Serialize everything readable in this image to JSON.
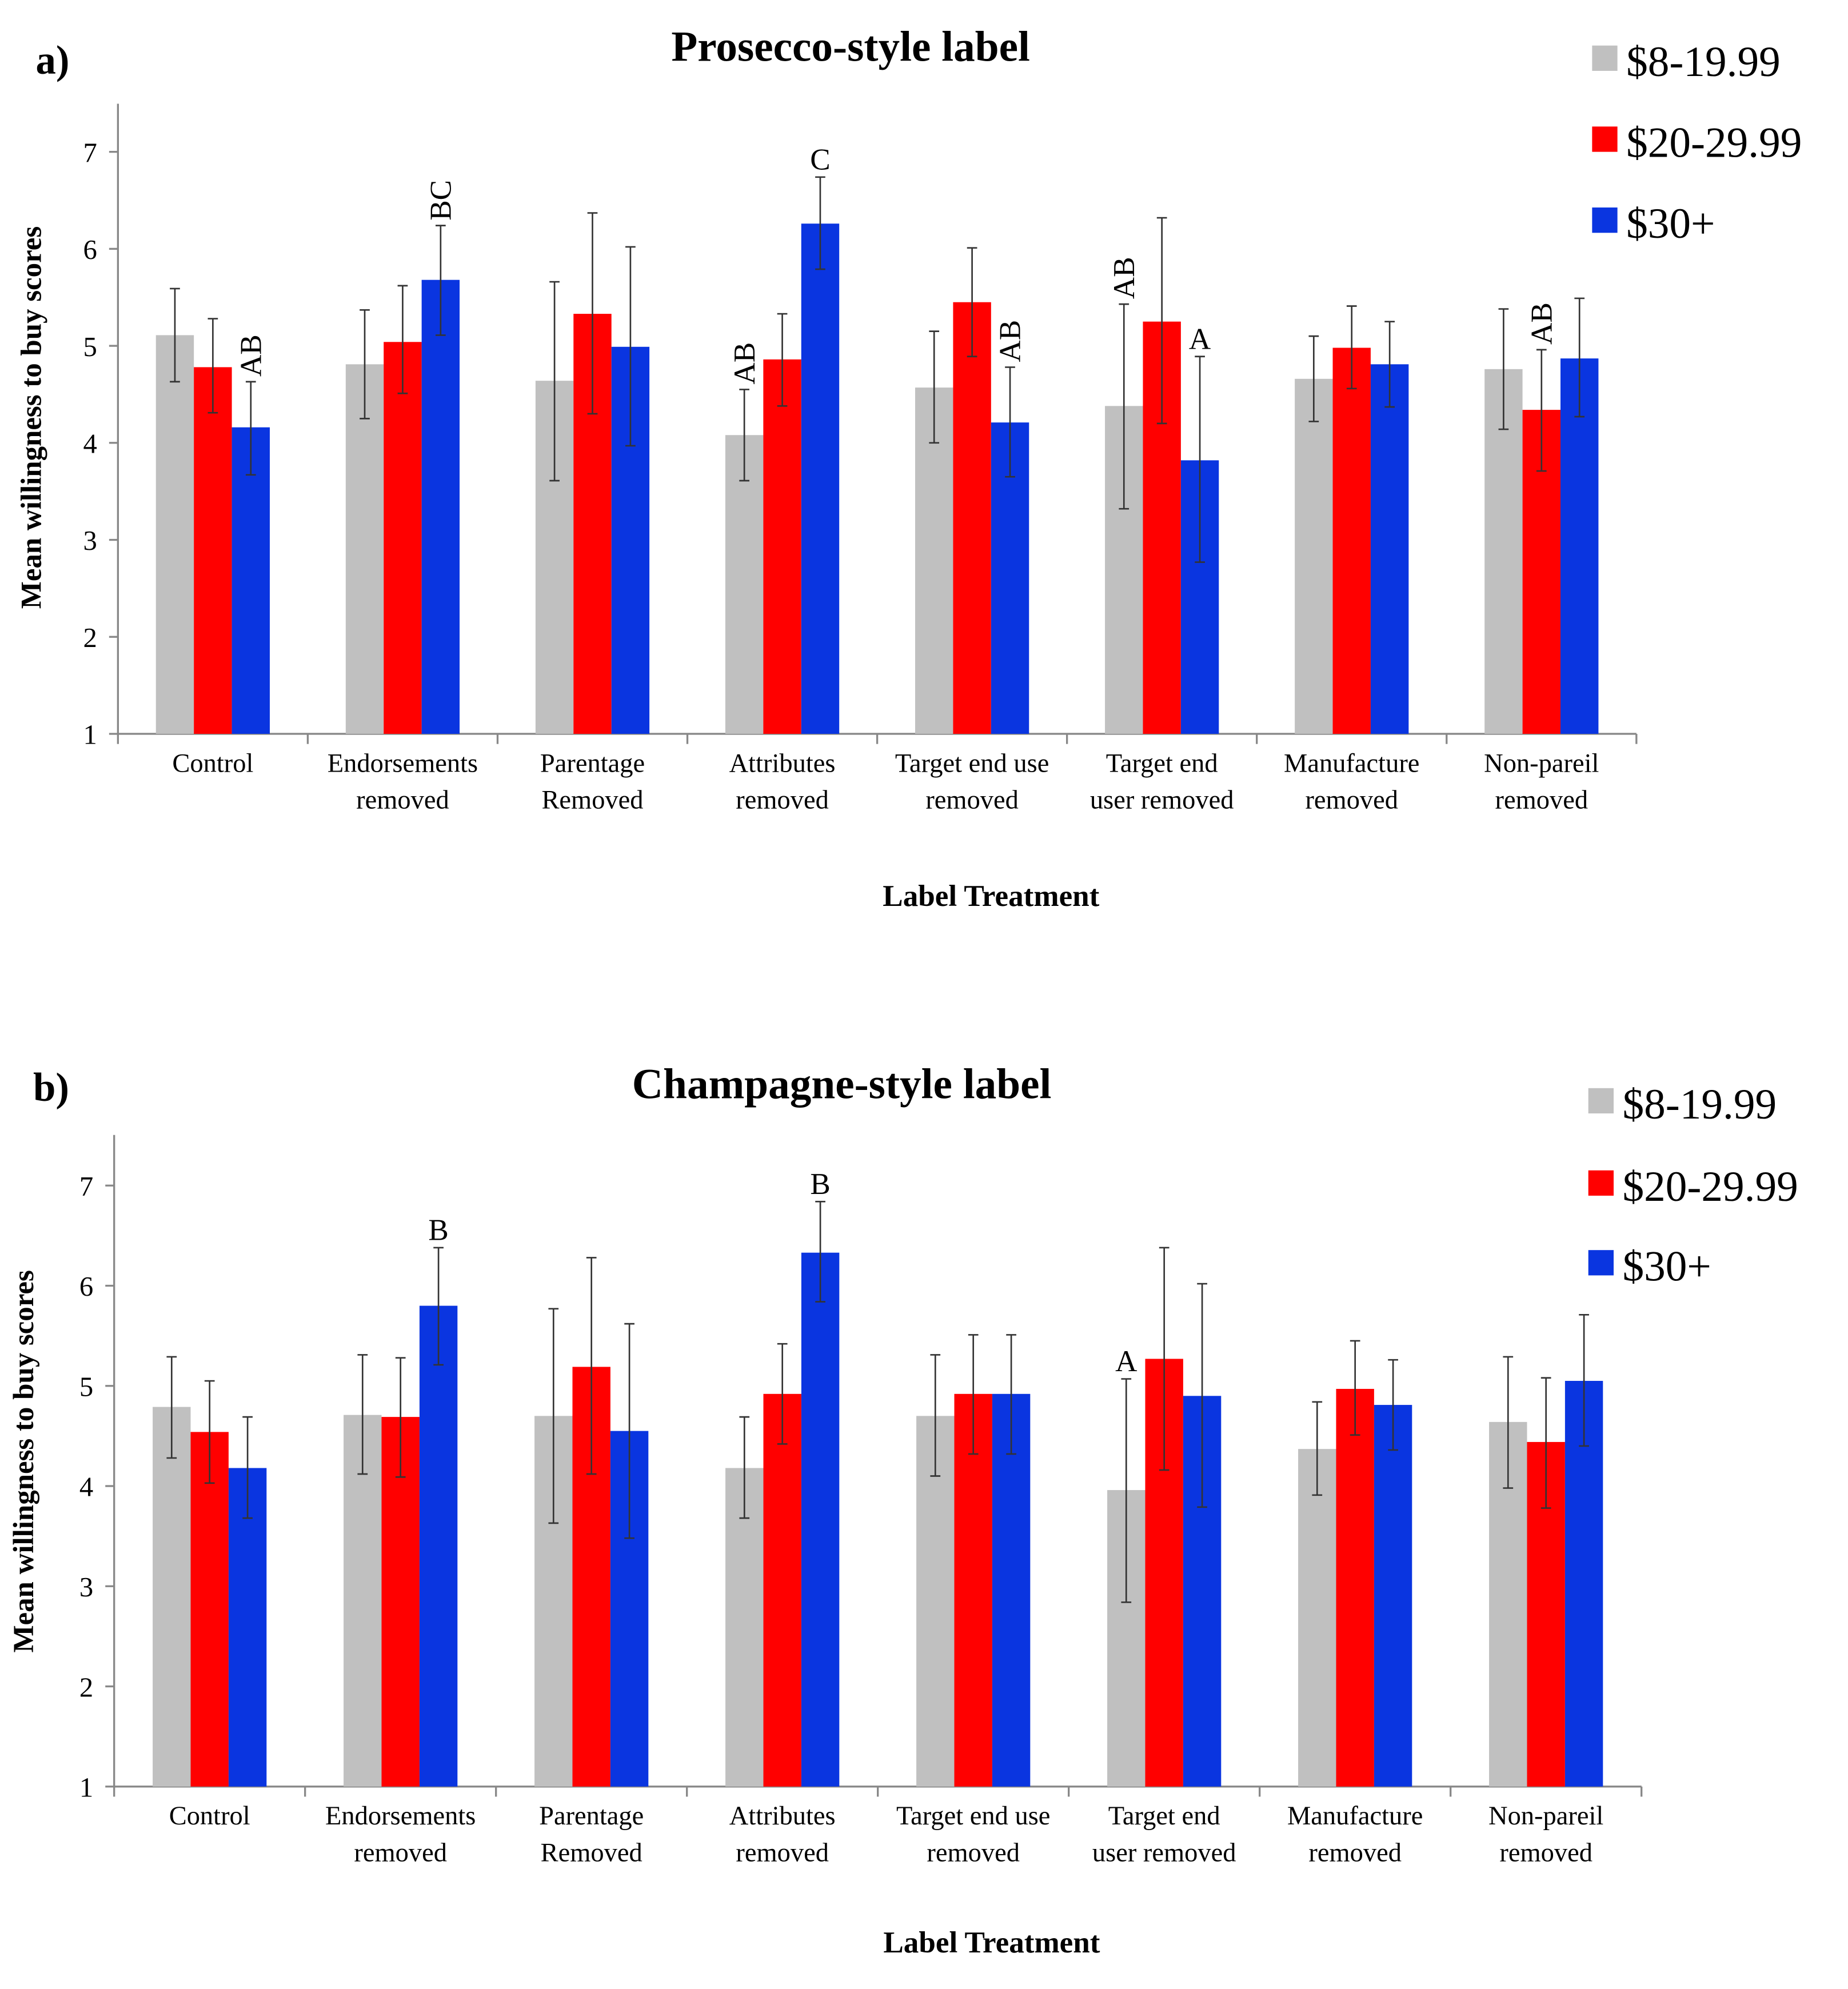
{
  "chart_data": [
    {
      "type": "bar",
      "panel": "a)",
      "title": "Prosecco-style label",
      "xlabel": "Label Treatment",
      "ylabel": "Mean willingness to buy scores",
      "ylim": [
        1,
        7.5
      ],
      "yticks": [
        1,
        2,
        3,
        4,
        5,
        6,
        7
      ],
      "legend_position": "top-right",
      "categories": [
        [
          "Control"
        ],
        [
          "Endorsements",
          "removed"
        ],
        [
          "Parentage",
          "Removed"
        ],
        [
          "Attributes",
          "removed"
        ],
        [
          "Target end use",
          "removed"
        ],
        [
          "Target end",
          "user removed"
        ],
        [
          "Manufacture",
          "removed"
        ],
        [
          "Non-pareil",
          "removed"
        ]
      ],
      "series": [
        {
          "name": "$8-19.99",
          "color": "#c0c0c0",
          "values": [
            5.11,
            4.81,
            4.64,
            4.08,
            4.57,
            4.38,
            4.66,
            4.76
          ],
          "err_low": [
            4.63,
            4.25,
            3.61,
            3.61,
            4.0,
            3.32,
            4.22,
            4.14
          ],
          "err_high": [
            5.59,
            5.37,
            5.66,
            4.55,
            5.15,
            5.43,
            5.1,
            5.38
          ]
        },
        {
          "name": "$20-29.99",
          "color": "#ff0000",
          "values": [
            4.78,
            5.04,
            5.33,
            4.86,
            5.45,
            5.25,
            4.98,
            4.34
          ],
          "err_low": [
            4.31,
            4.51,
            4.3,
            4.38,
            4.89,
            4.2,
            4.56,
            3.71
          ],
          "err_high": [
            5.28,
            5.62,
            6.37,
            5.33,
            6.01,
            6.32,
            5.41,
            4.96
          ]
        },
        {
          "name": "$30+",
          "color": "#0a35e0",
          "values": [
            4.16,
            5.68,
            4.99,
            6.26,
            4.21,
            3.82,
            4.81,
            4.87
          ],
          "err_low": [
            3.67,
            5.11,
            3.97,
            5.79,
            3.65,
            2.77,
            4.37,
            4.27
          ],
          "err_high": [
            4.63,
            6.24,
            6.02,
            6.74,
            4.78,
            4.89,
            5.25,
            5.49
          ]
        }
      ],
      "annotations": [
        {
          "category": 0,
          "series": 2,
          "text": "AB"
        },
        {
          "category": 1,
          "series": 2,
          "text": "BC"
        },
        {
          "category": 3,
          "series": 0,
          "text": "AB"
        },
        {
          "category": 3,
          "series": 2,
          "text": "C"
        },
        {
          "category": 4,
          "series": 2,
          "text": "AB"
        },
        {
          "category": 5,
          "series": 0,
          "text": "AB"
        },
        {
          "category": 5,
          "series": 2,
          "text": "A"
        },
        {
          "category": 7,
          "series": 1,
          "text": "AB"
        }
      ]
    },
    {
      "type": "bar",
      "panel": "b)",
      "title": "Champagne-style label",
      "xlabel": "Label Treatment",
      "ylabel": "Mean willingness to buy scores",
      "ylim": [
        1,
        7.5
      ],
      "yticks": [
        1,
        2,
        3,
        4,
        5,
        6,
        7
      ],
      "legend_position": "top-right",
      "categories": [
        [
          "Control"
        ],
        [
          "Endorsements",
          "removed"
        ],
        [
          "Parentage",
          "Removed"
        ],
        [
          "Attributes",
          "removed"
        ],
        [
          "Target end use",
          "removed"
        ],
        [
          "Target end",
          "user removed"
        ],
        [
          "Manufacture",
          "removed"
        ],
        [
          "Non-pareil",
          "removed"
        ]
      ],
      "series": [
        {
          "name": "$8-19.99",
          "color": "#c0c0c0",
          "values": [
            4.79,
            4.71,
            4.7,
            4.18,
            4.7,
            3.96,
            4.37,
            4.64
          ],
          "err_low": [
            4.28,
            4.12,
            3.63,
            3.68,
            4.1,
            2.84,
            3.91,
            3.98
          ],
          "err_high": [
            5.29,
            5.31,
            5.77,
            4.69,
            5.31,
            5.07,
            4.84,
            5.29
          ]
        },
        {
          "name": "$20-29.99",
          "color": "#ff0000",
          "values": [
            4.54,
            4.69,
            5.19,
            4.92,
            4.92,
            5.27,
            4.97,
            4.44
          ],
          "err_low": [
            4.03,
            4.09,
            4.12,
            4.42,
            4.32,
            4.16,
            4.51,
            3.78
          ],
          "err_high": [
            5.05,
            5.28,
            6.28,
            5.42,
            5.51,
            6.38,
            5.45,
            5.08
          ]
        },
        {
          "name": "$30+",
          "color": "#0a35e0",
          "values": [
            4.18,
            5.8,
            4.55,
            6.33,
            4.92,
            4.9,
            4.81,
            5.05
          ],
          "err_low": [
            3.68,
            5.21,
            3.48,
            5.84,
            4.32,
            3.79,
            4.36,
            4.4
          ],
          "err_high": [
            4.69,
            6.38,
            5.62,
            6.84,
            5.51,
            6.02,
            5.26,
            5.71
          ]
        }
      ],
      "annotations": [
        {
          "category": 1,
          "series": 2,
          "text": "B"
        },
        {
          "category": 3,
          "series": 2,
          "text": "B"
        },
        {
          "category": 5,
          "series": 0,
          "text": "A"
        }
      ]
    }
  ]
}
